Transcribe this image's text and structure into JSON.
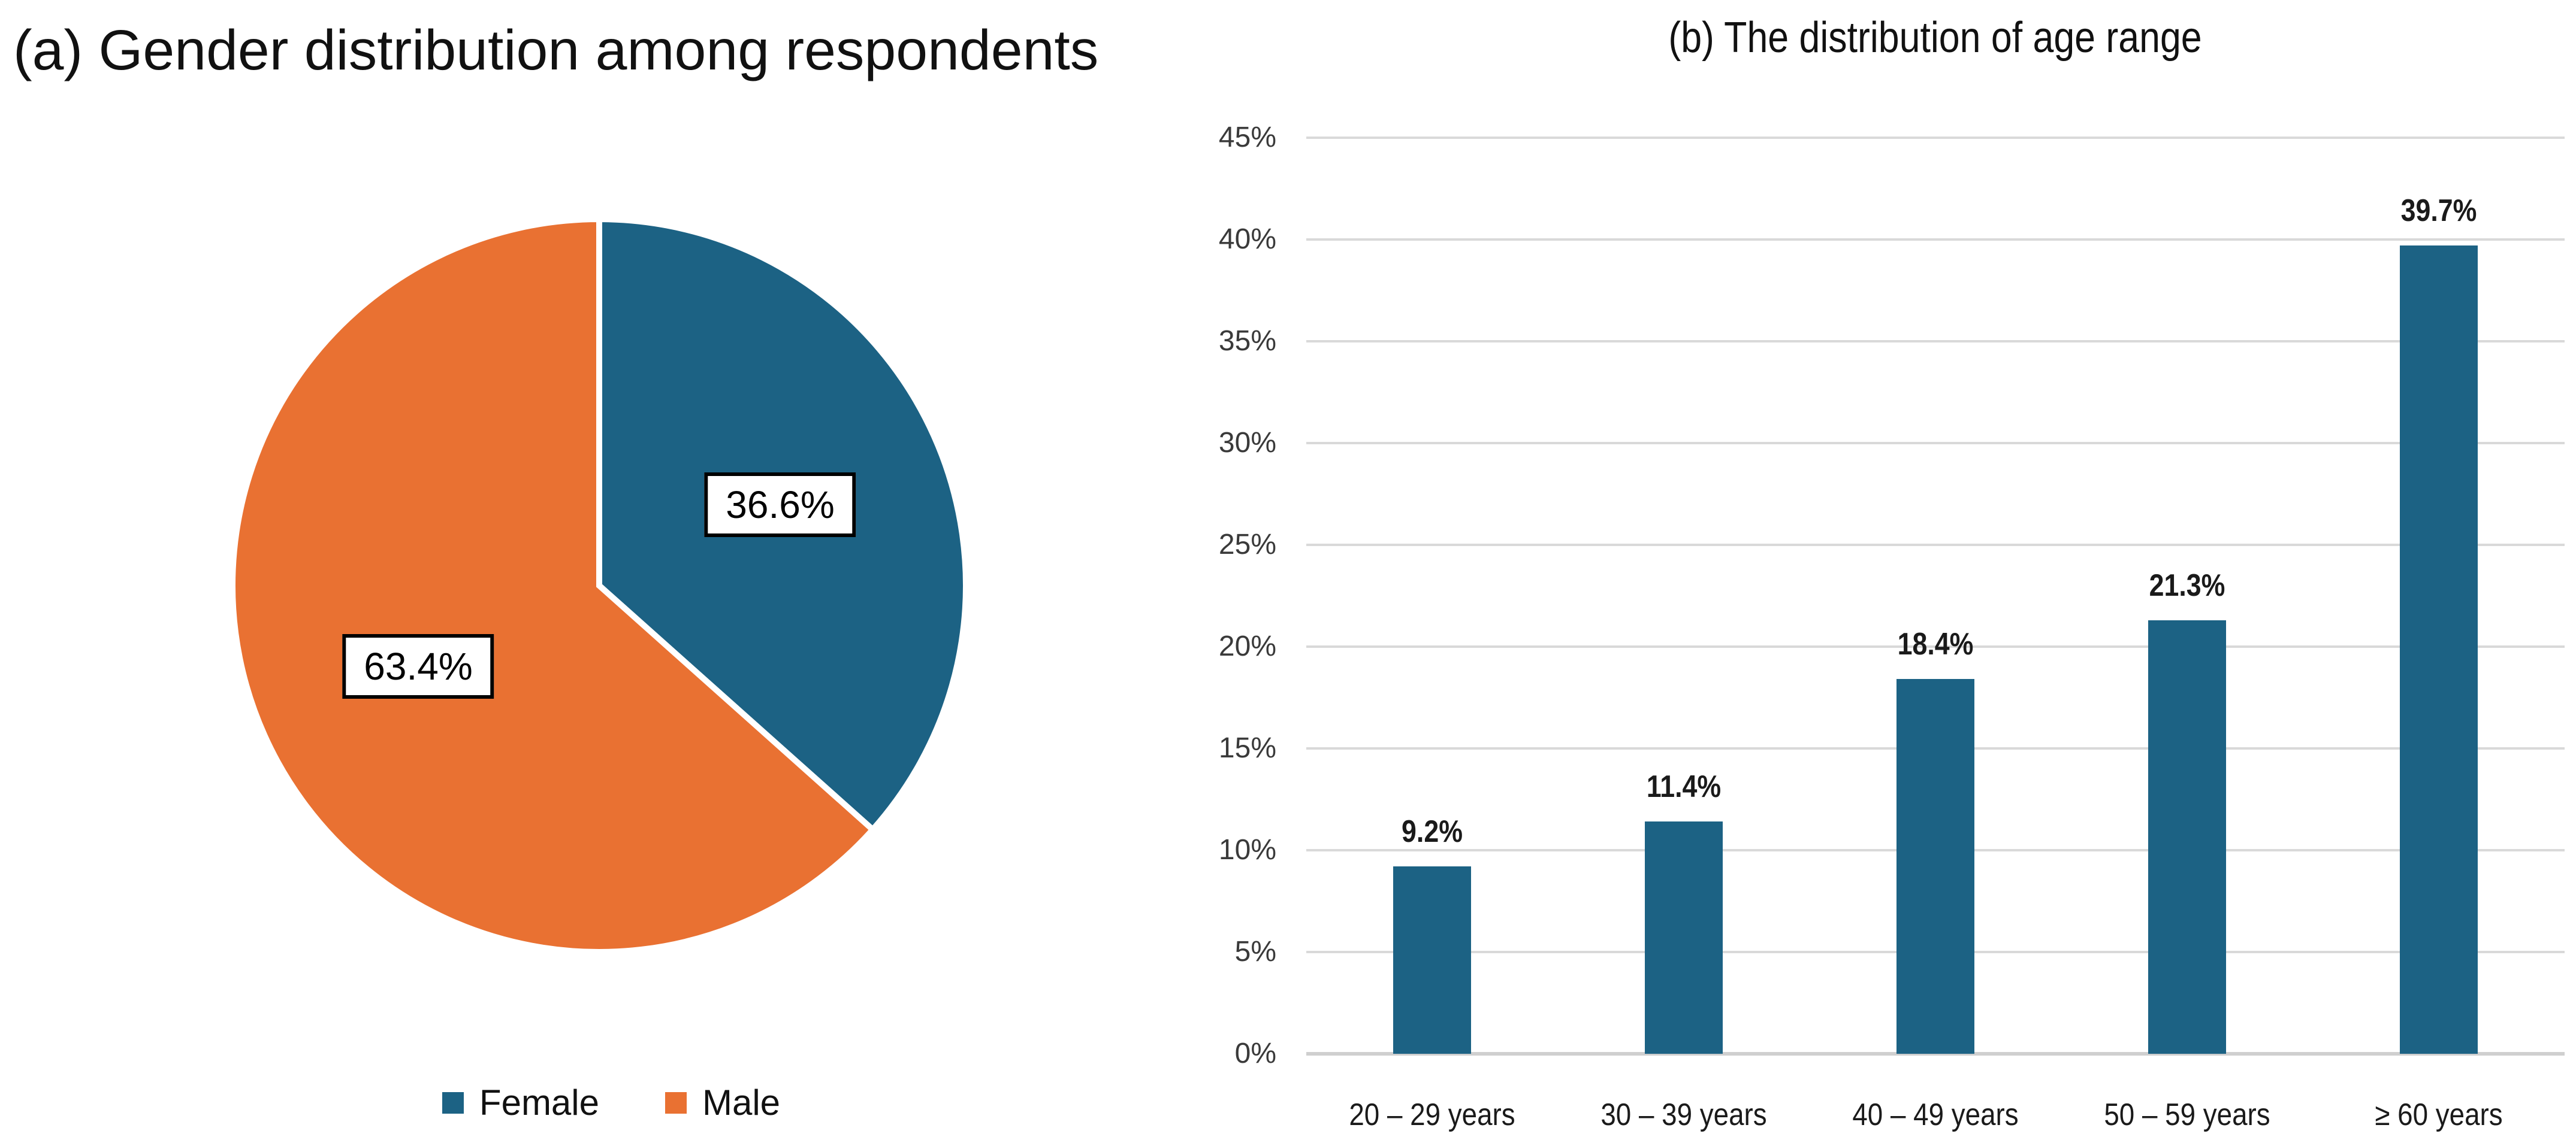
{
  "figure": {
    "background": "#FFFFFF",
    "panel_a_title": "(a) Gender distribution among respondents",
    "panel_b_title": "(b) The distribution of age range"
  },
  "chart_data": [
    {
      "type": "pie",
      "title": "(a) Gender distribution among respondents",
      "start_angle": "12 o'clock",
      "direction": "clockwise",
      "legend_position": "bottom",
      "slices": [
        {
          "label": "Female",
          "value": 36.6,
          "display_label": "36.6%",
          "color": "#1C6284"
        },
        {
          "label": "Male",
          "value": 63.4,
          "display_label": "63.4%",
          "color": "#E97132"
        }
      ]
    },
    {
      "type": "bar",
      "title": "(b) The distribution of age range",
      "categories": [
        "20 – 29 years",
        "30 – 39 years",
        "40 – 49 years",
        "50 – 59 years",
        "≥ 60 years"
      ],
      "values": [
        9.2,
        11.4,
        18.4,
        21.3,
        39.7
      ],
      "value_labels": [
        "9.2%",
        "11.4%",
        "18.4%",
        "21.3%",
        "39.7%"
      ],
      "xlabel": "",
      "ylabel": "",
      "ylim": [
        0,
        45
      ],
      "y_tick_step": 5,
      "y_tick_labels": [
        "0%",
        "5%",
        "10%",
        "15%",
        "20%",
        "25%",
        "30%",
        "35%",
        "40%",
        "45%"
      ],
      "grid": true,
      "legend": "none",
      "bar_color": "#1C6284",
      "gridline_color": "#D9D9D9"
    }
  ]
}
